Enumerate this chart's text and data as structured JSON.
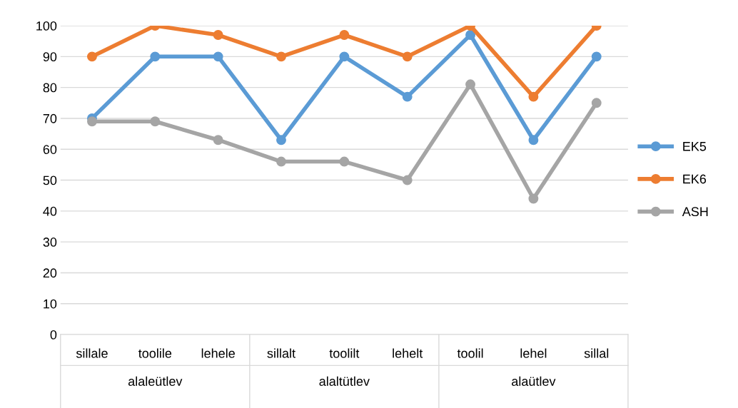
{
  "chart_data": {
    "type": "line",
    "categories": [
      "sillale",
      "toolile",
      "lehele",
      "sillalt",
      "toolilt",
      "lehelt",
      "toolil",
      "lehel",
      "sillal"
    ],
    "series": [
      {
        "name": "EK5",
        "color": "#5b9bd5",
        "values": [
          70,
          90,
          90,
          63,
          90,
          77,
          97,
          63,
          90
        ]
      },
      {
        "name": "EK6",
        "color": "#ed7d31",
        "values": [
          90,
          100,
          97,
          90,
          97,
          90,
          100,
          77,
          100
        ]
      },
      {
        "name": "ASH",
        "color": "#a5a5a5",
        "values": [
          69,
          69,
          63,
          56,
          56,
          50,
          81,
          44,
          75
        ]
      }
    ],
    "annotations": [
      "alaleütlev",
      "alaltütlev",
      "alaütlev"
    ],
    "ylim": [
      0,
      100
    ],
    "yticks": [
      0,
      10,
      20,
      30,
      40,
      50,
      60,
      70,
      80,
      90,
      100
    ],
    "grid": "y",
    "legend": "right",
    "marker": "circle",
    "line_style": "solid"
  }
}
